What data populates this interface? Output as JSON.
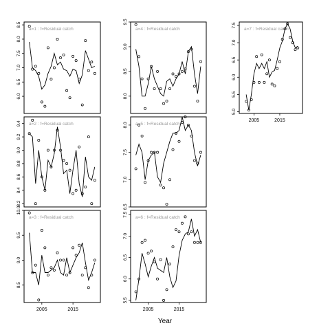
{
  "xlabel": "Year",
  "chart_data": [
    {
      "type": "line",
      "title": "a=1 : f=Residual catch",
      "ylim": [
        5.4,
        8.6
      ],
      "yticks": [
        "6.0",
        "6.5",
        "7.0",
        "7.5",
        "8.0",
        "8.5"
      ],
      "xticks": [],
      "series": [
        {
          "kind": "line",
          "x": [
            2001,
            2002,
            2003,
            2004,
            2005,
            2006,
            2007,
            2008,
            2009,
            2010,
            2011,
            2012,
            2013,
            2014,
            2015,
            2016,
            2017,
            2018,
            2019,
            2020,
            2021,
            2022
          ],
          "y": [
            7.9,
            7.0,
            6.9,
            6.7,
            6.25,
            6.4,
            6.8,
            7.05,
            7.5,
            7.1,
            7.2,
            6.95,
            6.9,
            6.7,
            6.95,
            6.9,
            6.45,
            6.75,
            7.6,
            7.3,
            7.0,
            7.05
          ]
        },
        {
          "kind": "points",
          "x": [
            2001,
            2002,
            2003,
            2004,
            2005,
            2006,
            2007,
            2008,
            2009,
            2010,
            2011,
            2012,
            2013,
            2014,
            2015,
            2016,
            2017,
            2018,
            2019,
            2020,
            2021,
            2022
          ],
          "y": [
            8.45,
            6.95,
            7.05,
            6.8,
            5.8,
            5.65,
            7.7,
            6.6,
            7.0,
            8.0,
            7.35,
            7.45,
            6.2,
            5.95,
            7.4,
            7.25,
            6.6,
            5.7,
            7.95,
            6.9,
            7.2,
            6.8
          ]
        }
      ]
    },
    {
      "type": "line",
      "title": "a=2 : f=Residual catch",
      "ylim": [
        8.15,
        9.5
      ],
      "yticks": [
        "8.2",
        "8.4",
        "8.6",
        "8.8",
        "9.0",
        "9.2",
        "9.4"
      ],
      "xticks": [],
      "series": [
        {
          "kind": "line",
          "x": [
            2001,
            2002,
            2003,
            2004,
            2005,
            2006,
            2007,
            2008,
            2009,
            2010,
            2011,
            2012,
            2013,
            2014,
            2015,
            2016,
            2017,
            2018,
            2019,
            2020,
            2021,
            2022
          ],
          "y": [
            9.25,
            9.2,
            8.5,
            9.0,
            8.6,
            8.4,
            8.85,
            8.75,
            8.95,
            9.35,
            9.05,
            8.65,
            8.7,
            8.35,
            8.7,
            9.0,
            8.5,
            8.3,
            8.9,
            8.6,
            8.55,
            8.75
          ]
        },
        {
          "kind": "points",
          "x": [
            2001,
            2002,
            2003,
            2004,
            2005,
            2006,
            2007,
            2008,
            2009,
            2010,
            2011,
            2012,
            2013,
            2014,
            2015,
            2016,
            2017,
            2018,
            2019,
            2020,
            2021,
            2022
          ],
          "y": [
            9.25,
            9.45,
            8.2,
            9.15,
            8.6,
            8.4,
            9.0,
            8.75,
            9.0,
            9.3,
            9.0,
            8.85,
            8.8,
            8.7,
            8.35,
            8.4,
            9.05,
            8.35,
            8.45,
            9.2,
            8.2,
            8.55
          ]
        }
      ]
    },
    {
      "type": "line",
      "title": "a=3 : f=Residual catch",
      "ylim": [
        8.15,
        10.0
      ],
      "yticks": [
        "8.5",
        "9.0",
        "9.5",
        "10.0"
      ],
      "xticks": [
        "2005",
        "2015"
      ],
      "series": [
        {
          "kind": "line",
          "x": [
            2001,
            2002,
            2003,
            2004,
            2005,
            2006,
            2007,
            2008,
            2009,
            2010,
            2011,
            2012,
            2013,
            2014,
            2015,
            2016,
            2017,
            2018,
            2019,
            2020,
            2021,
            2022
          ],
          "y": [
            9.55,
            8.75,
            8.75,
            8.5,
            9.1,
            8.75,
            8.75,
            8.8,
            8.85,
            9.0,
            8.75,
            8.7,
            9.05,
            8.75,
            8.9,
            9.05,
            9.15,
            9.35,
            8.95,
            8.6,
            8.75,
            8.95
          ]
        },
        {
          "kind": "points",
          "x": [
            2001,
            2002,
            2003,
            2004,
            2005,
            2006,
            2007,
            2008,
            2009,
            2010,
            2011,
            2012,
            2013,
            2014,
            2015,
            2016,
            2017,
            2018,
            2019,
            2020,
            2021,
            2022
          ],
          "y": [
            9.95,
            8.75,
            8.9,
            8.2,
            9.6,
            9.25,
            8.7,
            8.85,
            8.8,
            9.15,
            9.0,
            9.0,
            8.7,
            8.75,
            9.25,
            9.1,
            9.3,
            8.7,
            8.85,
            8.45,
            8.7,
            9.0
          ]
        }
      ]
    },
    {
      "type": "line",
      "title": "a=4 : f=Residual catch",
      "ylim": [
        7.65,
        9.5
      ],
      "yticks": [
        "8.0",
        "8.5",
        "9.0",
        "9.5"
      ],
      "xticks": [],
      "series": [
        {
          "kind": "line",
          "x": [
            2001,
            2002,
            2003,
            2004,
            2005,
            2006,
            2007,
            2008,
            2009,
            2010,
            2011,
            2012,
            2013,
            2014,
            2015,
            2016,
            2017,
            2018,
            2019,
            2020,
            2021,
            2022
          ],
          "y": [
            8.95,
            8.6,
            8.0,
            8.0,
            8.25,
            8.6,
            8.35,
            8.2,
            8.05,
            8.0,
            8.3,
            8.35,
            8.2,
            8.35,
            8.45,
            8.7,
            8.45,
            8.9,
            9.0,
            8.45,
            8.05,
            8.6
          ]
        },
        {
          "kind": "points",
          "x": [
            2001,
            2002,
            2003,
            2004,
            2005,
            2006,
            2007,
            2008,
            2009,
            2010,
            2011,
            2012,
            2013,
            2014,
            2015,
            2016,
            2017,
            2018,
            2019,
            2020,
            2021,
            2022
          ],
          "y": [
            9.45,
            8.8,
            8.35,
            7.75,
            8.35,
            8.6,
            8.15,
            8.5,
            8.15,
            7.85,
            7.9,
            8.15,
            8.45,
            8.4,
            8.45,
            8.5,
            8.55,
            8.9,
            8.95,
            8.2,
            7.9,
            8.7
          ]
        }
      ]
    },
    {
      "type": "line",
      "title": "a=5 : f=Residual catch",
      "ylim": [
        6.5,
        8.15
      ],
      "yticks": [
        "6.5",
        "7.0",
        "7.5",
        "8.0"
      ],
      "xticks": [],
      "series": [
        {
          "kind": "line",
          "x": [
            2001,
            2002,
            2003,
            2004,
            2005,
            2006,
            2007,
            2008,
            2009,
            2010,
            2011,
            2012,
            2013,
            2014,
            2015,
            2016,
            2017,
            2018,
            2019,
            2020,
            2021,
            2022
          ],
          "y": [
            7.45,
            7.65,
            7.5,
            7.0,
            7.35,
            7.45,
            7.5,
            7.05,
            6.95,
            7.3,
            7.5,
            7.7,
            7.85,
            7.85,
            7.9,
            8.15,
            7.9,
            8.0,
            7.9,
            7.5,
            7.25,
            7.45
          ]
        },
        {
          "kind": "points",
          "x": [
            2001,
            2002,
            2003,
            2004,
            2005,
            2006,
            2007,
            2008,
            2009,
            2010,
            2011,
            2012,
            2013,
            2014,
            2015,
            2016,
            2017,
            2018,
            2019,
            2020,
            2021,
            2022
          ],
          "y": [
            7.2,
            8.0,
            7.8,
            6.95,
            7.35,
            7.5,
            7.5,
            7.5,
            6.9,
            6.85,
            6.55,
            7.0,
            7.55,
            7.85,
            7.7,
            8.05,
            8.15,
            8.0,
            7.8,
            7.35,
            7.3,
            7.5
          ]
        }
      ]
    },
    {
      "type": "line",
      "title": "a=6 : f=Residual catch",
      "ylim": [
        5.45,
        7.6
      ],
      "yticks": [
        "5.5",
        "6.0",
        "6.5",
        "7.0",
        "7.5"
      ],
      "xticks": [
        "2005",
        "2015"
      ],
      "series": [
        {
          "kind": "line",
          "x": [
            2001,
            2002,
            2003,
            2004,
            2005,
            2006,
            2007,
            2008,
            2009,
            2010,
            2011,
            2012,
            2013,
            2014,
            2015,
            2016,
            2017,
            2018,
            2019,
            2020,
            2021,
            2022
          ],
          "y": [
            5.5,
            6.0,
            6.6,
            6.35,
            6.05,
            6.3,
            6.5,
            6.25,
            6.2,
            6.15,
            6.5,
            6.05,
            5.8,
            5.95,
            6.55,
            6.9,
            7.05,
            7.1,
            7.4,
            7.0,
            7.15,
            6.85
          ]
        },
        {
          "kind": "points",
          "x": [
            2001,
            2002,
            2003,
            2004,
            2005,
            2006,
            2007,
            2008,
            2009,
            2010,
            2011,
            2012,
            2013,
            2014,
            2015,
            2016,
            2017,
            2018,
            2019,
            2020,
            2021,
            2022
          ],
          "y": [
            5.7,
            6.0,
            6.85,
            6.9,
            6.6,
            6.65,
            6.4,
            6.0,
            6.45,
            5.5,
            5.75,
            6.35,
            6.75,
            7.15,
            7.1,
            7.3,
            7.45,
            7.05,
            7.1,
            6.85,
            6.85,
            6.85
          ]
        }
      ]
    },
    {
      "type": "line",
      "title": "a=7 : f=Residual catch",
      "ylim": [
        4.95,
        7.6
      ],
      "yticks": [
        "5.0",
        "5.5",
        "6.0",
        "6.5",
        "7.0",
        "7.5"
      ],
      "xticks": [
        "2005",
        "2015"
      ],
      "series": [
        {
          "kind": "line",
          "x": [
            2002,
            2003,
            2004,
            2005,
            2006,
            2007,
            2008,
            2009,
            2010,
            2011,
            2012,
            2013,
            2014,
            2015,
            2016,
            2017,
            2018,
            2019,
            2020,
            2021,
            2022
          ],
          "y": [
            5.5,
            5.05,
            5.5,
            6.1,
            6.4,
            6.25,
            6.4,
            6.25,
            6.45,
            6.0,
            6.15,
            6.2,
            6.5,
            6.85,
            7.05,
            7.4,
            7.55,
            7.4,
            7.05,
            6.85,
            6.9
          ]
        },
        {
          "kind": "points",
          "x": [
            2002,
            2003,
            2004,
            2005,
            2006,
            2007,
            2008,
            2009,
            2010,
            2011,
            2012,
            2013,
            2014,
            2015,
            2016,
            2017,
            2018,
            2019,
            2020,
            2021,
            2022
          ],
          "y": [
            5.3,
            5.05,
            5.35,
            5.85,
            6.6,
            5.85,
            6.65,
            5.85,
            6.1,
            6.5,
            5.8,
            5.75,
            6.25,
            6.45,
            7.1,
            7.4,
            7.55,
            7.15,
            7.0,
            6.8,
            6.85
          ]
        }
      ]
    }
  ]
}
